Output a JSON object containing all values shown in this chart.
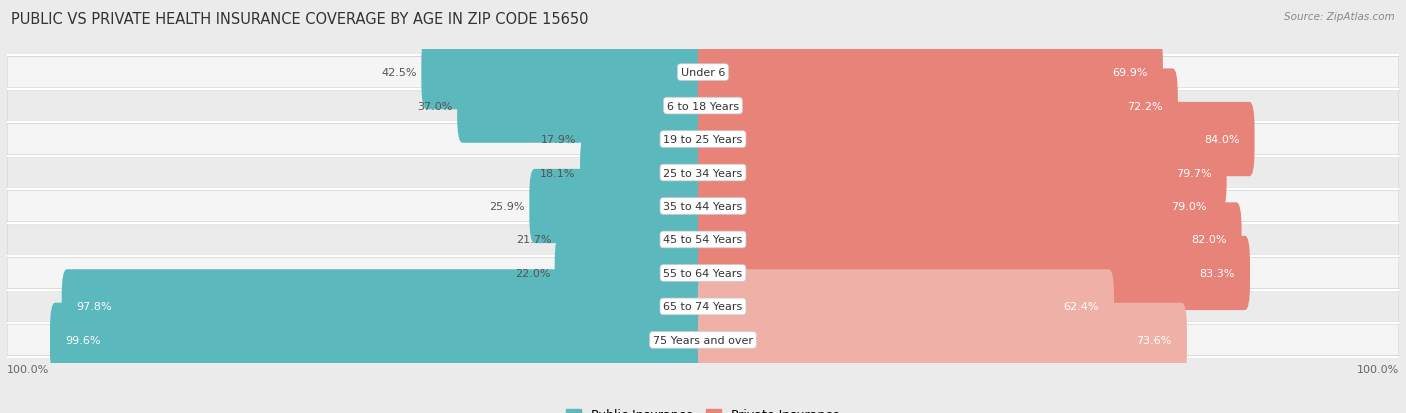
{
  "title": "PUBLIC VS PRIVATE HEALTH INSURANCE COVERAGE BY AGE IN ZIP CODE 15650",
  "source": "Source: ZipAtlas.com",
  "categories": [
    "Under 6",
    "6 to 18 Years",
    "19 to 25 Years",
    "25 to 34 Years",
    "35 to 44 Years",
    "45 to 54 Years",
    "55 to 64 Years",
    "65 to 74 Years",
    "75 Years and over"
  ],
  "public_values": [
    42.5,
    37.0,
    17.9,
    18.1,
    25.9,
    21.7,
    22.0,
    97.8,
    99.6
  ],
  "private_values": [
    69.9,
    72.2,
    84.0,
    79.7,
    79.0,
    82.0,
    83.3,
    62.4,
    73.6
  ],
  "public_color": "#5BB8BC",
  "private_color": "#E8837A",
  "private_color_light": "#EFB0A8",
  "bg_color": "#EBEBEB",
  "row_color_light": "#F5F5F5",
  "row_color_dark": "#EBEBEB",
  "axis_label": "100.0%",
  "title_fontsize": 10.5,
  "label_fontsize": 8,
  "value_fontsize": 8,
  "legend_fontsize": 9,
  "source_fontsize": 7.5
}
